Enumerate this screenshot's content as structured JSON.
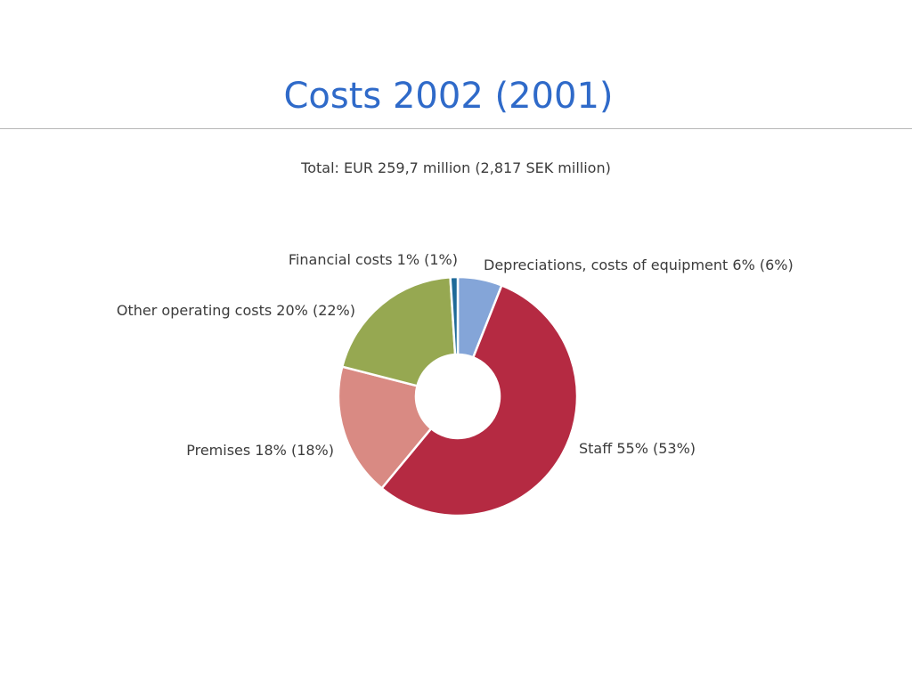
{
  "slide": {
    "title": "Costs 2002 (2001)"
  },
  "chart_data": {
    "type": "pie",
    "subtitle": "Total: EUR 259,7 million (2,817 SEK million)",
    "donut": true,
    "slices": [
      {
        "name": "Depreciations, costs of equipment",
        "value": 6,
        "prior": 6,
        "color": "#84a5d8",
        "label": "Depreciations, costs of equipment 6% (6%)"
      },
      {
        "name": "Staff",
        "value": 55,
        "prior": 53,
        "color": "#b52a42",
        "label": "Staff 55% (53%)"
      },
      {
        "name": "Premises",
        "value": 18,
        "prior": 18,
        "color": "#d98a83",
        "label": "Premises 18% (18%)"
      },
      {
        "name": "Other operating costs",
        "value": 20,
        "prior": 22,
        "color": "#96a851",
        "label": "Other operating costs 20% (22%)"
      },
      {
        "name": "Financial costs",
        "value": 1,
        "prior": 1,
        "color": "#1f6a99",
        "label": "Financial costs 1% (1%)"
      }
    ]
  }
}
